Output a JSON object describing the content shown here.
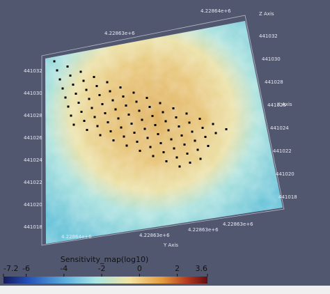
{
  "colorbar": {
    "title": "Sensitivity_map(log10)",
    "range": [
      -7.2,
      3.6
    ],
    "ticks": [
      -7.2,
      -6,
      -4,
      -2,
      0,
      2,
      3.6
    ]
  },
  "axes": {
    "x_title": "X Axis",
    "y_title": "Y Axis",
    "z_title": "Z Axis",
    "top_ticks": [
      "4.22864e+6",
      "4.22863e+6"
    ],
    "bottom_ticks": [
      "4.22864e+6",
      "4.22863e+6",
      "4.22863e+6",
      "4.22863e+6"
    ],
    "left_ticks": [
      "441032",
      "441030",
      "441028",
      "441026",
      "441024",
      "441022",
      "441020",
      "441018"
    ],
    "right_ticks": [
      "441032",
      "441030",
      "441028",
      "441026",
      "441024",
      "441022",
      "441020",
      "441018"
    ]
  }
}
